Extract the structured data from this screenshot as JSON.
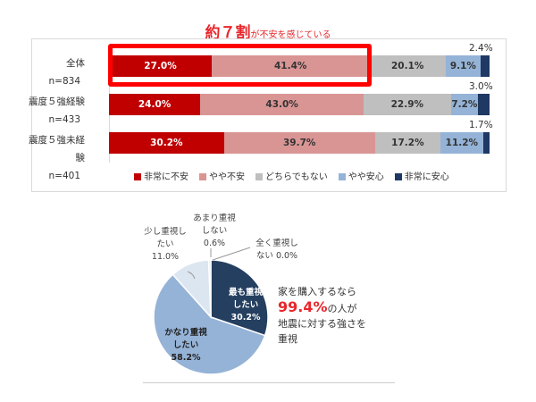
{
  "headline": {
    "emph": "約７割",
    "rest": "が不安を感じている"
  },
  "chart_data": [
    {
      "type": "bar",
      "orientation": "horizontal",
      "stacked": true,
      "categories": [
        {
          "label": "全体",
          "n": "n=834"
        },
        {
          "label": "震度５強経験",
          "n": "n=433"
        },
        {
          "label": "震度５強未経験",
          "n": "n=401"
        }
      ],
      "series": [
        {
          "name": "非常に不安",
          "color": "#c00000",
          "values": [
            27.0,
            24.0,
            30.2
          ]
        },
        {
          "name": "やや不安",
          "color": "#d99594",
          "values": [
            41.4,
            43.0,
            39.7
          ]
        },
        {
          "name": "どちらでもない",
          "color": "#bfbfbf",
          "values": [
            20.1,
            22.9,
            17.2
          ]
        },
        {
          "name": "やや安心",
          "color": "#95b3d7",
          "values": [
            9.1,
            7.2,
            11.2
          ]
        },
        {
          "name": "非常に安心",
          "color": "#1f3864",
          "values": [
            2.4,
            3.0,
            1.7
          ]
        }
      ],
      "legend": "bottom",
      "unit": "%",
      "highlight": "全体: 非常に不安 + やや不安"
    },
    {
      "type": "pie",
      "slices": [
        {
          "label": "最も重視したい",
          "value": 30.2,
          "color": "#243f60",
          "text": [
            "最も重視",
            "したい",
            "30.2%"
          ]
        },
        {
          "label": "かなり重視したい",
          "value": 58.2,
          "color": "#95b3d7",
          "text": [
            "かなり重視",
            "したい",
            "58.2%"
          ]
        },
        {
          "label": "少し重視したい",
          "value": 11.0,
          "color": "#dce6f1",
          "text": [
            "少し重視し",
            "たい",
            "11.0%"
          ]
        },
        {
          "label": "あまり重視しない",
          "value": 0.6,
          "color": "#dce6f1",
          "text": [
            "あまり重視",
            "しない",
            "0.6%"
          ]
        },
        {
          "label": "全く重視しない",
          "value": 0.0,
          "color": "#dce6f1",
          "text": [
            "全く重視し",
            "ない 0.0%"
          ]
        }
      ]
    }
  ],
  "note": {
    "line1": "家を購入するなら",
    "pct": "99.4%",
    "line2": "の人が",
    "line3": "地震に対する強さを",
    "line4": "重視"
  }
}
